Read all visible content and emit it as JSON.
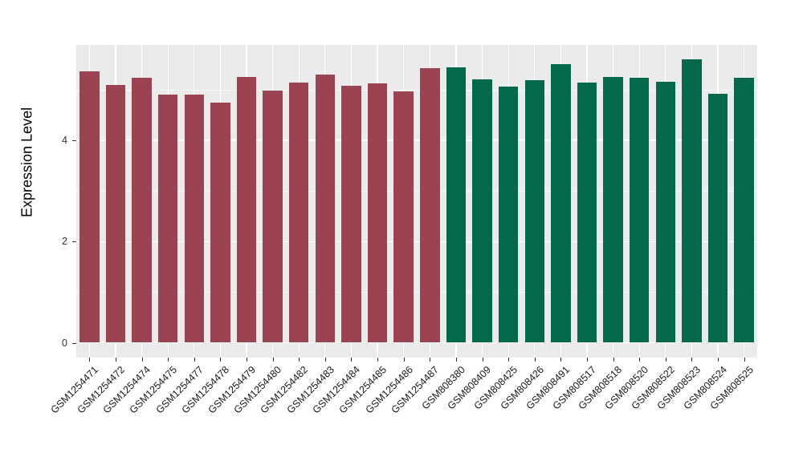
{
  "chart_data": {
    "type": "bar",
    "title": "",
    "xlabel": "",
    "ylabel": "Expression Level",
    "legend": "none",
    "grid": true,
    "panel_bg": "#EBEBEB",
    "grid_color": "#FFFFFF",
    "yticks": [
      0,
      2,
      4
    ],
    "minor_yticks": [
      1,
      3,
      5
    ],
    "ylim": [
      -0.31,
      5.88
    ],
    "categories": [
      "GSM1254471",
      "GSM1254472",
      "GSM1254474",
      "GSM1254475",
      "GSM1254477",
      "GSM1254478",
      "GSM1254479",
      "GSM1254480",
      "GSM1254482",
      "GSM1254483",
      "GSM1254484",
      "GSM1254485",
      "GSM1254486",
      "GSM1254487",
      "GSM808380",
      "GSM808409",
      "GSM808425",
      "GSM808426",
      "GSM808491",
      "GSM808517",
      "GSM808518",
      "GSM808520",
      "GSM808522",
      "GSM808523",
      "GSM808524",
      "GSM808525"
    ],
    "values": [
      5.35,
      5.09,
      5.23,
      4.89,
      4.89,
      4.74,
      5.25,
      4.98,
      5.14,
      5.29,
      5.07,
      5.12,
      4.96,
      5.42,
      5.43,
      5.2,
      5.06,
      5.18,
      5.5,
      5.14,
      5.25,
      5.23,
      5.15,
      5.6,
      4.91,
      5.23
    ],
    "bar_groups": [
      0,
      0,
      0,
      0,
      0,
      0,
      0,
      0,
      0,
      0,
      0,
      0,
      0,
      0,
      1,
      1,
      1,
      1,
      1,
      1,
      1,
      1,
      1,
      1,
      1,
      1
    ],
    "group_colors": [
      "#9B4353",
      "#05684A"
    ]
  }
}
